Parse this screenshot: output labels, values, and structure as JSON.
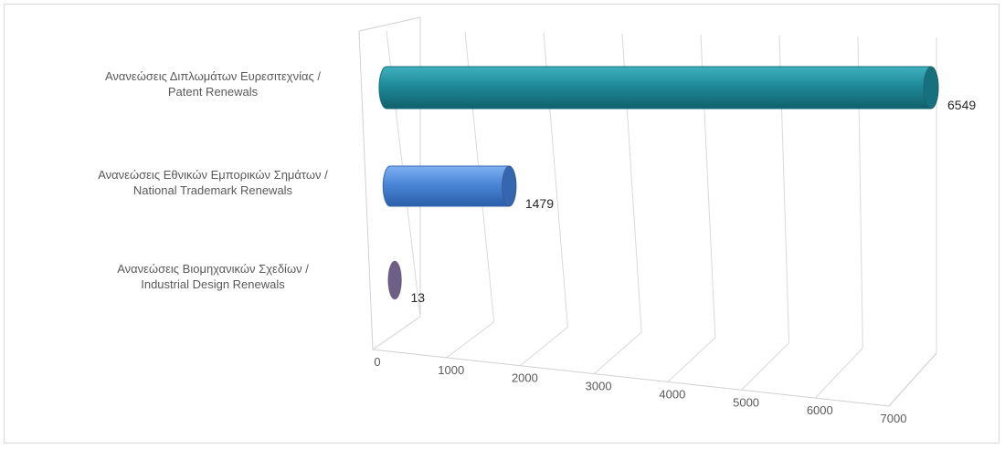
{
  "chart_data": {
    "type": "bar",
    "orientation": "horizontal",
    "style": "3d-cylinder",
    "categories": [
      [
        "Ανανεώσεις Διπλωμάτων Ευρεσιτεχνίας /",
        "Patent Renewals"
      ],
      [
        "Ανανεώσεις Εθνικών Εμπορικών Σημάτων /",
        "National Trademark Renewals"
      ],
      [
        "Ανανεώσεις Βιομηχανικών Σχεδίων  /",
        "Industrial Design Renewals"
      ]
    ],
    "values": [
      6549,
      1479,
      13
    ],
    "data_labels": [
      "6549",
      "1479",
      "13"
    ],
    "colors": [
      "#1f8a99",
      "#4a86d8",
      "#8a7aa6"
    ],
    "cap_colors": [
      "#17707d",
      "#3567b0",
      "#6d5f86"
    ],
    "x_ticks": [
      "0",
      "1000",
      "2000",
      "3000",
      "4000",
      "5000",
      "6000",
      "7000"
    ],
    "xlim": [
      0,
      7000
    ],
    "grid": true,
    "legend": "none",
    "title": "",
    "xlabel": "",
    "ylabel": ""
  }
}
